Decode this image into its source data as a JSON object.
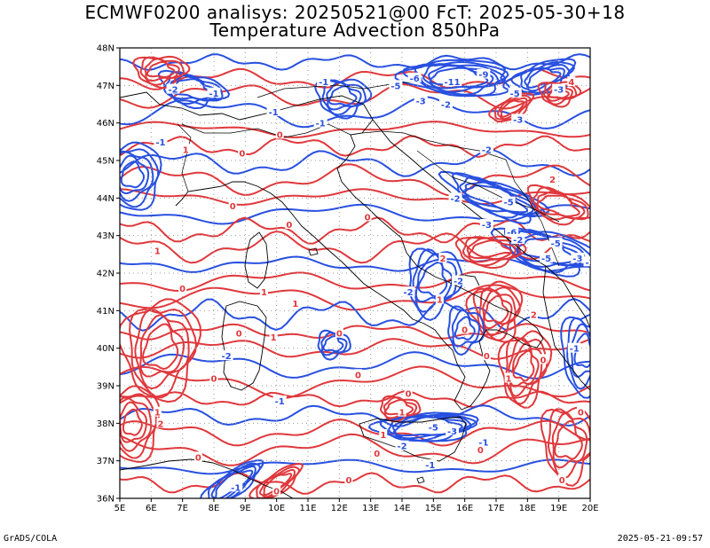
{
  "title_line1": "ECMWF0200 analisys: 20250521@00 FcT: 2025-05-30+18",
  "title_line2": "Temperature Advection 850hPa",
  "footer_left": "GrADS/COLA",
  "footer_right": "2025-05-21-09:57",
  "colors": {
    "positive": "#e0383c",
    "negative": "#2850e0",
    "coast": "#000000",
    "grid": "#999999"
  },
  "axes": {
    "lon_ticks": [
      "5E",
      "6E",
      "7E",
      "8E",
      "9E",
      "10E",
      "11E",
      "12E",
      "13E",
      "14E",
      "15E",
      "16E",
      "17E",
      "18E",
      "19E",
      "20E"
    ],
    "lat_ticks": [
      "48N",
      "47N",
      "46N",
      "45N",
      "44N",
      "43N",
      "42N",
      "41N",
      "40N",
      "39N",
      "38N",
      "37N",
      "36N"
    ],
    "lon_range": [
      5,
      20
    ],
    "lat_range": [
      36,
      48
    ],
    "grid": "dotted"
  },
  "contour_labels": [
    {
      "text": "-2",
      "lon": 6.7,
      "lat": 46.9,
      "sign": "neg"
    },
    {
      "text": "-1",
      "lon": 8.0,
      "lat": 46.8,
      "sign": "neg"
    },
    {
      "text": "-1",
      "lon": 11.5,
      "lat": 47.1,
      "sign": "neg"
    },
    {
      "text": "-5",
      "lon": 13.8,
      "lat": 47.0,
      "sign": "neg"
    },
    {
      "text": "-6",
      "lon": 14.4,
      "lat": 47.2,
      "sign": "neg"
    },
    {
      "text": "-11",
      "lon": 15.6,
      "lat": 47.1,
      "sign": "neg"
    },
    {
      "text": "-9",
      "lon": 16.6,
      "lat": 47.3,
      "sign": "neg"
    },
    {
      "text": "-3",
      "lon": 14.6,
      "lat": 46.6,
      "sign": "neg"
    },
    {
      "text": "-2",
      "lon": 15.4,
      "lat": 46.5,
      "sign": "neg"
    },
    {
      "text": "-5",
      "lon": 17.6,
      "lat": 46.8,
      "sign": "neg"
    },
    {
      "text": "-3",
      "lon": 19.0,
      "lat": 46.9,
      "sign": "neg"
    },
    {
      "text": "4",
      "lon": 19.4,
      "lat": 47.1,
      "sign": "pos"
    },
    {
      "text": "-3",
      "lon": 17.7,
      "lat": 46.1,
      "sign": "neg"
    },
    {
      "text": "-2",
      "lon": 16.7,
      "lat": 45.3,
      "sign": "neg"
    },
    {
      "text": "2",
      "lon": 18.8,
      "lat": 44.5,
      "sign": "pos"
    },
    {
      "text": "-2",
      "lon": 15.7,
      "lat": 44.0,
      "sign": "neg"
    },
    {
      "text": "-5",
      "lon": 17.4,
      "lat": 43.9,
      "sign": "neg"
    },
    {
      "text": "-3",
      "lon": 16.7,
      "lat": 43.3,
      "sign": "neg"
    },
    {
      "text": "-6",
      "lon": 17.5,
      "lat": 43.1,
      "sign": "neg"
    },
    {
      "text": "-2",
      "lon": 17.7,
      "lat": 42.9,
      "sign": "neg"
    },
    {
      "text": "-5",
      "lon": 18.9,
      "lat": 42.8,
      "sign": "neg"
    },
    {
      "text": "-5",
      "lon": 18.6,
      "lat": 42.4,
      "sign": "neg"
    },
    {
      "text": "-3",
      "lon": 19.6,
      "lat": 42.4,
      "sign": "neg"
    },
    {
      "text": "-2",
      "lon": 20.0,
      "lat": 42.3,
      "sign": "neg"
    },
    {
      "text": "2",
      "lon": 15.3,
      "lat": 42.4,
      "sign": "pos"
    },
    {
      "text": "-2",
      "lon": 14.2,
      "lat": 41.5,
      "sign": "neg"
    },
    {
      "text": "-2",
      "lon": 15.8,
      "lat": 41.8,
      "sign": "neg"
    },
    {
      "text": "1",
      "lon": 15.2,
      "lat": 41.3,
      "sign": "pos"
    },
    {
      "text": "2",
      "lon": 18.2,
      "lat": 40.9,
      "sign": "pos"
    },
    {
      "text": "-1",
      "lon": 9.9,
      "lat": 46.3,
      "sign": "neg"
    },
    {
      "text": "-1",
      "lon": 11.4,
      "lat": 46.0,
      "sign": "neg"
    },
    {
      "text": "0",
      "lon": 10.1,
      "lat": 45.7,
      "sign": "pos"
    },
    {
      "text": "0",
      "lon": 8.9,
      "lat": 45.2,
      "sign": "pos"
    },
    {
      "text": "1",
      "lon": 7.1,
      "lat": 45.3,
      "sign": "pos"
    },
    {
      "text": "-1",
      "lon": 6.3,
      "lat": 45.5,
      "sign": "neg"
    },
    {
      "text": "0",
      "lon": 8.6,
      "lat": 43.8,
      "sign": "pos"
    },
    {
      "text": "0",
      "lon": 10.4,
      "lat": 43.3,
      "sign": "pos"
    },
    {
      "text": "1",
      "lon": 6.2,
      "lat": 42.6,
      "sign": "pos"
    },
    {
      "text": "0",
      "lon": 12.9,
      "lat": 43.5,
      "sign": "pos"
    },
    {
      "text": "0",
      "lon": 7.0,
      "lat": 41.6,
      "sign": "pos"
    },
    {
      "text": "1",
      "lon": 10.6,
      "lat": 41.2,
      "sign": "pos"
    },
    {
      "text": "1",
      "lon": 9.6,
      "lat": 41.5,
      "sign": "pos"
    },
    {
      "text": "0",
      "lon": 12.0,
      "lat": 40.4,
      "sign": "pos"
    },
    {
      "text": "0",
      "lon": 8.8,
      "lat": 40.4,
      "sign": "pos"
    },
    {
      "text": "1",
      "lon": 9.9,
      "lat": 40.3,
      "sign": "pos"
    },
    {
      "text": "-2",
      "lon": 8.4,
      "lat": 39.8,
      "sign": "neg"
    },
    {
      "text": "0",
      "lon": 12.6,
      "lat": 39.3,
      "sign": "pos"
    },
    {
      "text": "0",
      "lon": 8.0,
      "lat": 39.2,
      "sign": "pos"
    },
    {
      "text": "-1",
      "lon": 10.1,
      "lat": 38.6,
      "sign": "neg"
    },
    {
      "text": "0",
      "lon": 16.0,
      "lat": 40.5,
      "sign": "pos"
    },
    {
      "text": "0",
      "lon": 16.7,
      "lat": 39.8,
      "sign": "pos"
    },
    {
      "text": "1",
      "lon": 17.4,
      "lat": 39.2,
      "sign": "pos"
    },
    {
      "text": "0",
      "lon": 18.5,
      "lat": 39.7,
      "sign": "pos"
    },
    {
      "text": "0",
      "lon": 14.2,
      "lat": 38.8,
      "sign": "pos"
    },
    {
      "text": "1",
      "lon": 14.0,
      "lat": 38.3,
      "sign": "pos"
    },
    {
      "text": "1",
      "lon": 13.4,
      "lat": 37.7,
      "sign": "pos"
    },
    {
      "text": "-5",
      "lon": 15.0,
      "lat": 37.9,
      "sign": "neg"
    },
    {
      "text": "-3",
      "lon": 15.6,
      "lat": 37.8,
      "sign": "neg"
    },
    {
      "text": "-1",
      "lon": 16.6,
      "lat": 37.5,
      "sign": "neg"
    },
    {
      "text": "-2",
      "lon": 14.0,
      "lat": 37.4,
      "sign": "neg"
    },
    {
      "text": "-1",
      "lon": 14.9,
      "lat": 36.9,
      "sign": "neg"
    },
    {
      "text": "0",
      "lon": 13.2,
      "lat": 37.2,
      "sign": "pos"
    },
    {
      "text": "0",
      "lon": 16.5,
      "lat": 37.3,
      "sign": "pos"
    },
    {
      "text": "1",
      "lon": 6.2,
      "lat": 38.3,
      "sign": "pos"
    },
    {
      "text": "2",
      "lon": 6.3,
      "lat": 38.0,
      "sign": "pos"
    },
    {
      "text": "0",
      "lon": 7.5,
      "lat": 37.1,
      "sign": "pos"
    },
    {
      "text": "0",
      "lon": 10.0,
      "lat": 36.2,
      "sign": "pos"
    },
    {
      "text": "0",
      "lon": 12.3,
      "lat": 36.5,
      "sign": "pos"
    },
    {
      "text": "-1",
      "lon": 8.7,
      "lat": 36.3,
      "sign": "neg"
    },
    {
      "text": "0",
      "lon": 19.1,
      "lat": 36.5,
      "sign": "pos"
    },
    {
      "text": "0",
      "lon": 19.7,
      "lat": 38.3,
      "sign": "pos"
    },
    {
      "text": "-1",
      "lon": 19.5,
      "lat": 40.0,
      "sign": "neg"
    }
  ]
}
